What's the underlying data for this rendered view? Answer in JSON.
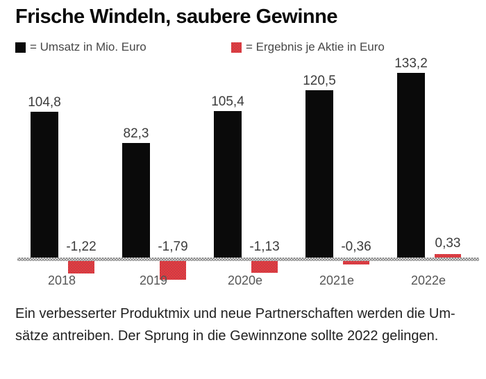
{
  "title": "Frische Windeln, saubere Gewinne",
  "legend": {
    "items": [
      {
        "label": "= Umsatz in Mio. Euro",
        "swatch": "black-square"
      },
      {
        "label": "= Ergebnis je Aktie in Euro",
        "swatch": "red-checker-square"
      }
    ]
  },
  "chart_data": {
    "type": "bar",
    "title": "Frische Windeln, saubere Gewinne",
    "categories": [
      "2018",
      "2019",
      "2020e",
      "2021e",
      "2022e"
    ],
    "series": [
      {
        "name": "Umsatz in Mio. Euro",
        "values": [
          104.8,
          82.3,
          105.4,
          120.5,
          133.2
        ],
        "display_labels": [
          "104,8",
          "82,3",
          "105,4",
          "120,5",
          "133,2"
        ],
        "color": "#0a0a0a"
      },
      {
        "name": "Ergebnis je Aktie in Euro",
        "values": [
          -1.22,
          -1.79,
          -1.13,
          -0.36,
          0.33
        ],
        "display_labels": [
          "-1,22",
          "-1,79",
          "-1,13",
          "-0,36",
          "0,33"
        ],
        "color": "#e23b40"
      }
    ],
    "xlabel": "",
    "ylabel": "",
    "grid": false,
    "legend_position": "top",
    "baseline_value": 0
  },
  "colors": {
    "umsatz_bar": "#0a0a0a",
    "ergebnis_bar": "#e23b40",
    "baseline": "#8c8c8c",
    "label_text": "#3c3c3c"
  },
  "caption": {
    "lines": [
      "Ein verbesserter Produktmix und neue Partnerschaften werden die Um-",
      "sätze antreiben. Der Sprung in die Gewinnzone sollte 2022 gelingen."
    ]
  }
}
